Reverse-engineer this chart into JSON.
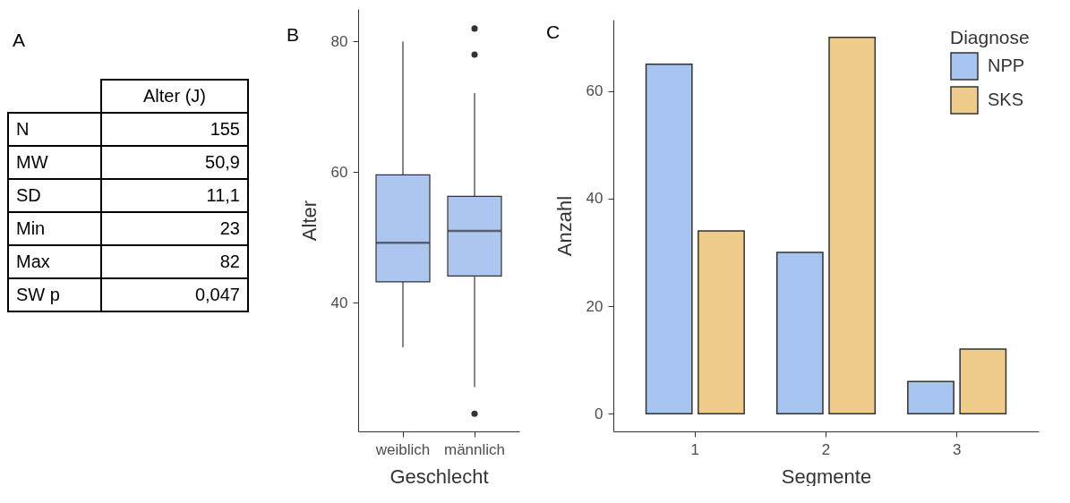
{
  "chart_data": [
    {
      "type": "other",
      "title": "A",
      "categories": [
        "N",
        "MW",
        "SD",
        "Min",
        "Max",
        "SW p"
      ],
      "series": [
        {
          "name": "Alter (J)",
          "values": [
            155,
            50.9,
            11.1,
            23,
            82,
            0.047
          ],
          "value_labels": [
            "155",
            "50,9",
            "11,1",
            "23",
            "82",
            "0,047"
          ]
        }
      ]
    },
    {
      "type": "box",
      "title": "B",
      "categories": [
        "weiblich",
        "männlich"
      ],
      "xlabel": "Geschlecht",
      "ylabel": "Alter",
      "ylim": [
        20.3,
        85
      ],
      "yticks": [
        40,
        60,
        80
      ],
      "grid": false,
      "series": [
        {
          "color": "#adc6f0",
          "boxes": [
            {
              "low": 33.2,
              "q1": 43.2,
              "median": 49.2,
              "q3": 59.6,
              "high": 80
            },
            {
              "low": 27.1,
              "q1": 44.1,
              "median": 51,
              "q3": 56.3,
              "high": 72.1,
              "outliers": [
                82,
                78,
                23
              ]
            }
          ]
        }
      ]
    },
    {
      "type": "bar",
      "title": "C",
      "categories": [
        "1",
        "2",
        "3"
      ],
      "xlabel": "Segmente",
      "ylabel": "Anzahl",
      "ylim": [
        -3.3,
        73.3
      ],
      "yticks": [
        0,
        20,
        40,
        60
      ],
      "grid": false,
      "legend": "top right",
      "legend_title": "Diagnose",
      "series": [
        {
          "name": "NPP",
          "color": "#a7c3f0",
          "values": [
            65,
            30,
            6
          ]
        },
        {
          "name": "SKS",
          "color": "#efcc8c",
          "values": [
            34,
            70,
            12
          ]
        }
      ]
    }
  ]
}
